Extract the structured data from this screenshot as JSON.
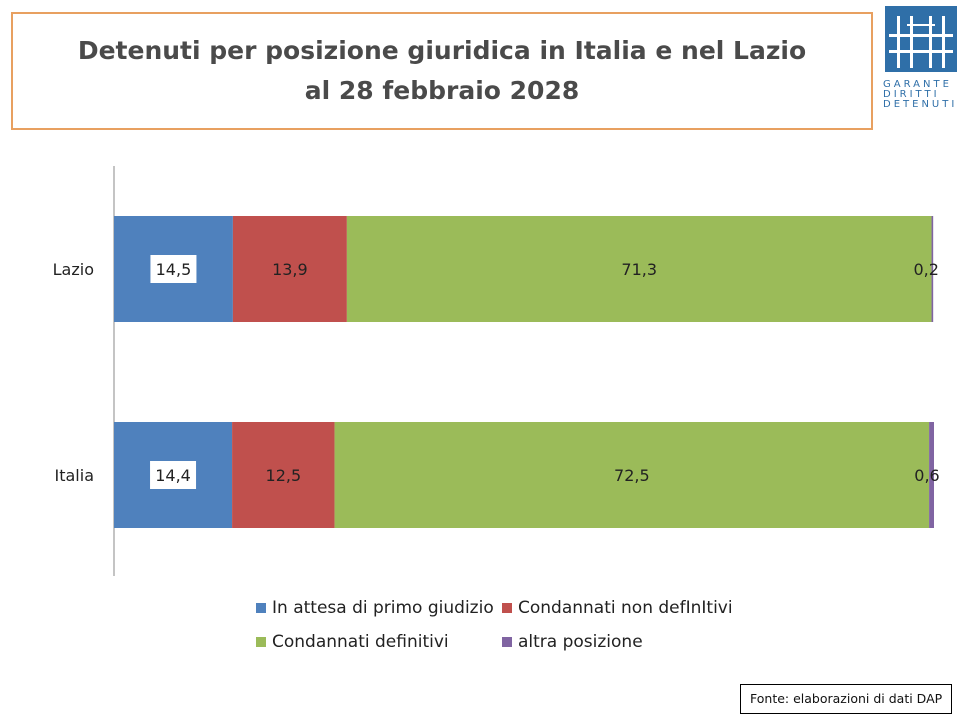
{
  "title": {
    "line1": "Detenuti per posizione giuridica in Italia e nel Lazio",
    "line2": "al 28 febbraio 2028"
  },
  "logo": {
    "rows": [
      "GARANTE",
      "DIRITTI",
      "DETENUTI"
    ],
    "color": "#2f6fa8"
  },
  "chart_data": {
    "type": "bar",
    "orientation": "horizontal",
    "stacked": true,
    "categories": [
      "Lazio",
      "Italia"
    ],
    "series": [
      {
        "name": "In attesa di primo giudizio",
        "color": "#4f81bd",
        "values": [
          14.5,
          14.4
        ],
        "labels": [
          "14,5",
          "14,4"
        ]
      },
      {
        "name": "Condannati non defInItivi",
        "color": "#c0504d",
        "values": [
          13.9,
          12.5
        ],
        "labels": [
          "13,9",
          "12,5"
        ]
      },
      {
        "name": "Condannati definitivi",
        "color": "#9bbb59",
        "values": [
          71.3,
          72.5
        ],
        "labels": [
          "71,3",
          "72,5"
        ]
      },
      {
        "name": "altra posizione",
        "color": "#8064a2",
        "values": [
          0.2,
          0.6
        ],
        "labels": [
          "0,2",
          "0,6"
        ]
      }
    ],
    "xlim": [
      0,
      100
    ],
    "grid": false,
    "legend_position": "bottom"
  },
  "source": "Fonte: elaborazioni di dati DAP"
}
